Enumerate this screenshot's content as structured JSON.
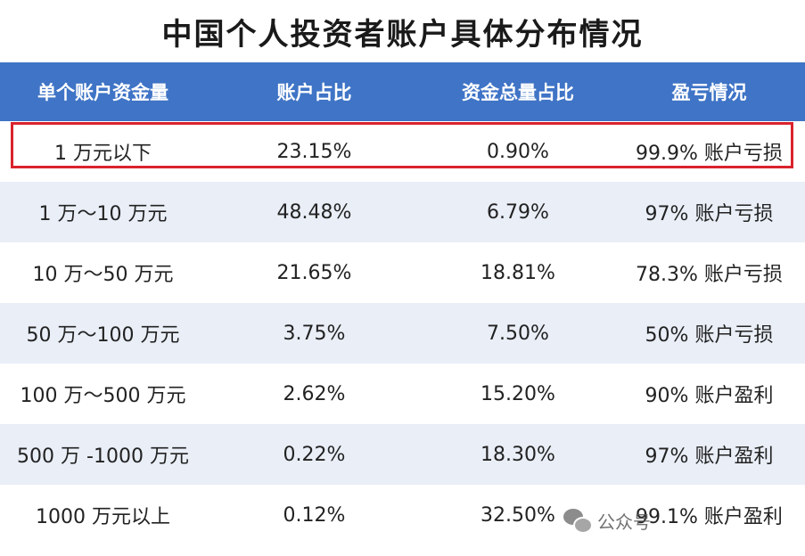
{
  "title": "中国个人投资者账户具体分布情况",
  "table": {
    "headers": [
      "单个账户资金量",
      "账户占比",
      "资金总量占比",
      "盈亏情况"
    ],
    "rows": [
      {
        "tier": "1 万元以下",
        "account_share": "23.15%",
        "fund_share": "0.90%",
        "pnl": "99.9% 账户亏损",
        "highlighted": true
      },
      {
        "tier": "1 万～10 万元",
        "account_share": "48.48%",
        "fund_share": "6.79%",
        "pnl": "97% 账户亏损"
      },
      {
        "tier": "10 万～50 万元",
        "account_share": "21.65%",
        "fund_share": "18.81%",
        "pnl": "78.3% 账户亏损"
      },
      {
        "tier": "50 万～100 万元",
        "account_share": "3.75%",
        "fund_share": "7.50%",
        "pnl": "50% 账户亏损"
      },
      {
        "tier": "100 万～500 万元",
        "account_share": "2.62%",
        "fund_share": "15.20%",
        "pnl": "90% 账户盈利"
      },
      {
        "tier": "500 万 -1000 万元",
        "account_share": "0.22%",
        "fund_share": "18.30%",
        "pnl": "97% 账户盈利"
      },
      {
        "tier": "1000 万元以上",
        "account_share": "0.12%",
        "fund_share": "32.50%",
        "pnl": "99.1% 账户盈利"
      }
    ]
  },
  "watermark": {
    "icon": "wechat-icon",
    "text": "公众号"
  },
  "colors": {
    "header_bg": "#3f74c6",
    "alt_row_bg": "#e9eef7",
    "highlight_border": "#d9232d"
  }
}
